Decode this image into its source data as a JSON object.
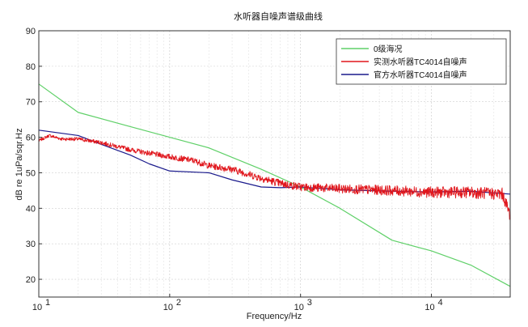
{
  "chart_data": {
    "type": "line",
    "title": "水听器自噪声谱级曲线",
    "xlabel": "Frequency/Hz",
    "ylabel": "dB re 1uPa/sqr.Hz",
    "xscale": "log",
    "xlim": [
      10,
      40000
    ],
    "ylim": [
      15,
      90
    ],
    "yticks": [
      20,
      30,
      40,
      50,
      60,
      70,
      80,
      90
    ],
    "xtick_values": [
      10,
      100,
      1000,
      10000
    ],
    "xtick_labels": [
      {
        "base": "10",
        "exp": "1"
      },
      {
        "base": "10",
        "exp": "2"
      },
      {
        "base": "10",
        "exp": "3"
      },
      {
        "base": "10",
        "exp": "4"
      }
    ],
    "grid": true,
    "legend_position": "top-right",
    "series": [
      {
        "name": "0级海况",
        "color": "#5fd068",
        "noise": 0,
        "x": [
          10,
          20,
          50,
          100,
          200,
          500,
          1000,
          2000,
          5000,
          10000,
          20000,
          40000
        ],
        "y": [
          75,
          67,
          63,
          60,
          57,
          51,
          46,
          40,
          31,
          28,
          24,
          18
        ]
      },
      {
        "name": "实测水听器TC4014自噪声",
        "color": "#e0161c",
        "noise": 1,
        "x": [
          10,
          12,
          15,
          20,
          30,
          50,
          70,
          100,
          150,
          200,
          300,
          500,
          700,
          1000,
          2000,
          5000,
          10000,
          20000,
          35000,
          40000
        ],
        "y": [
          59,
          60.5,
          59.5,
          59.5,
          58.5,
          56.5,
          55.5,
          54.5,
          53.5,
          52,
          51,
          48.5,
          47,
          46,
          45.5,
          45,
          44.5,
          44.5,
          44,
          38
        ]
      },
      {
        "name": "官方水听器TC4014自噪声",
        "color": "#1a1a8c",
        "noise": 0,
        "x": [
          10,
          20,
          30,
          50,
          70,
          100,
          200,
          300,
          500,
          700,
          1000,
          2000,
          5000,
          10000,
          20000,
          40000
        ],
        "y": [
          62,
          60.5,
          58,
          55,
          52.5,
          50.5,
          50,
          48,
          46,
          45.8,
          46,
          45.2,
          44.8,
          44.6,
          44.8,
          44
        ]
      }
    ]
  }
}
